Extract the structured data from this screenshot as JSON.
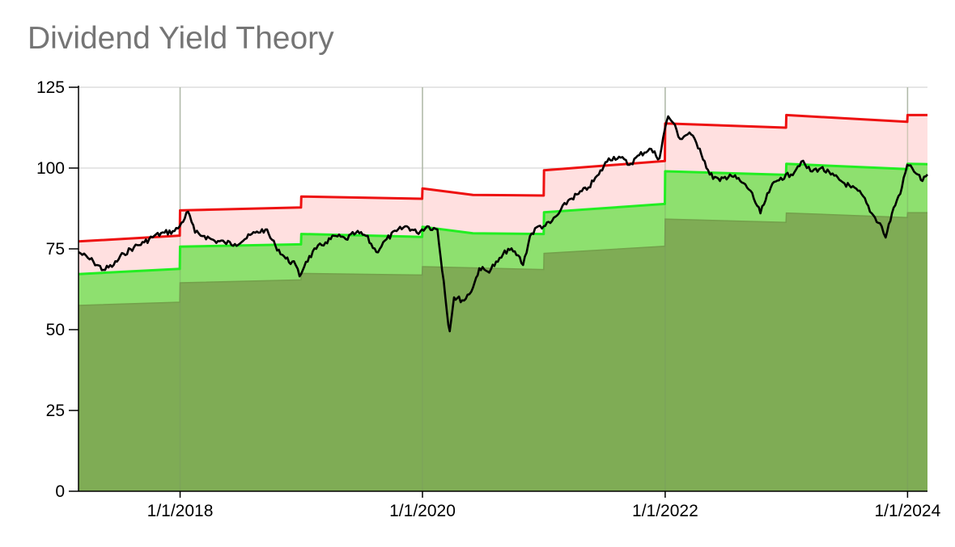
{
  "chart_data": {
    "type": "area",
    "title": "Dividend Yield Theory",
    "xlabel": "",
    "ylabel": "",
    "xlim": [
      "2017-03-01",
      "2024-03-01"
    ],
    "ylim": [
      0,
      125
    ],
    "y_ticks": [
      0,
      25,
      50,
      75,
      100,
      125
    ],
    "y_tick_labels": [
      "0",
      "25",
      "50",
      "75",
      "100",
      "125"
    ],
    "x_ticks": [
      "2018-01-01",
      "2020-01-01",
      "2022-01-01",
      "2024-01-01"
    ],
    "x_tick_labels": [
      "1/1/2018",
      "1/1/2020",
      "1/1/2022",
      "1/1/2024"
    ],
    "grid": true,
    "legend": "none",
    "colors": {
      "undervalued_band": "#7fac55",
      "fair_band": "#8ee06f",
      "overvalued_band": "#ffe0e0",
      "overvalued_line": "#ee1111",
      "fair_line": "#22ee22",
      "price_line": "#000000"
    },
    "series": [
      {
        "key": "undervalued",
        "points": [
          [
            "2017-03-01",
            57.5
          ],
          [
            "2017-12-31",
            58.5
          ],
          [
            "2018-01-01",
            64.5
          ],
          [
            "2018-12-31",
            65.4
          ],
          [
            "2019-01-01",
            67.4
          ],
          [
            "2019-12-31",
            66.9
          ],
          [
            "2020-01-01",
            69.5
          ],
          [
            "2020-12-31",
            68.6
          ],
          [
            "2021-01-01",
            73.6
          ],
          [
            "2021-12-31",
            75.8
          ],
          [
            "2022-01-01",
            84.2
          ],
          [
            "2022-12-31",
            83.2
          ],
          [
            "2023-01-01",
            86.1
          ],
          [
            "2023-12-31",
            84.7
          ],
          [
            "2024-01-01",
            86.2
          ],
          [
            "2024-03-01",
            86.2
          ]
        ]
      },
      {
        "key": "fair",
        "points": [
          [
            "2017-03-01",
            67.2
          ],
          [
            "2017-12-31",
            68.8
          ],
          [
            "2018-01-01",
            75.7
          ],
          [
            "2018-12-31",
            76.4
          ],
          [
            "2019-01-01",
            79.6
          ],
          [
            "2019-12-31",
            78.7
          ],
          [
            "2020-01-01",
            81.8
          ],
          [
            "2020-06-01",
            79.8
          ],
          [
            "2020-12-31",
            79.6
          ],
          [
            "2021-01-01",
            86.3
          ],
          [
            "2021-12-31",
            88.9
          ],
          [
            "2022-01-01",
            99.0
          ],
          [
            "2022-12-31",
            97.9
          ],
          [
            "2023-01-01",
            101.3
          ],
          [
            "2023-12-31",
            99.7
          ],
          [
            "2024-01-01",
            101.3
          ],
          [
            "2024-03-01",
            101.2
          ]
        ]
      },
      {
        "key": "overvalued",
        "points": [
          [
            "2017-03-01",
            77.3
          ],
          [
            "2017-12-31",
            79.1
          ],
          [
            "2018-01-01",
            86.9
          ],
          [
            "2018-12-31",
            87.8
          ],
          [
            "2019-01-01",
            91.2
          ],
          [
            "2019-12-31",
            90.5
          ],
          [
            "2020-01-01",
            93.7
          ],
          [
            "2020-06-01",
            91.7
          ],
          [
            "2020-12-31",
            91.5
          ],
          [
            "2021-01-01",
            99.3
          ],
          [
            "2021-12-31",
            102.2
          ],
          [
            "2022-01-01",
            113.8
          ],
          [
            "2022-12-31",
            112.5
          ],
          [
            "2023-01-01",
            116.4
          ],
          [
            "2023-12-31",
            114.3
          ],
          [
            "2024-01-01",
            116.4
          ],
          [
            "2024-03-01",
            116.4
          ]
        ]
      },
      {
        "key": "price",
        "points": [
          [
            "2017-03-01",
            74.0
          ],
          [
            "2017-04-15",
            71.0
          ],
          [
            "2017-05-15",
            68.5
          ],
          [
            "2017-06-15",
            70.0
          ],
          [
            "2017-07-15",
            73.5
          ],
          [
            "2017-08-15",
            75.5
          ],
          [
            "2017-09-15",
            77.0
          ],
          [
            "2017-10-15",
            79.0
          ],
          [
            "2017-11-15",
            80.0
          ],
          [
            "2017-12-15",
            80.5
          ],
          [
            "2017-12-31",
            82.0
          ],
          [
            "2018-01-25",
            86.5
          ],
          [
            "2018-02-15",
            80.0
          ],
          [
            "2018-03-15",
            79.0
          ],
          [
            "2018-04-15",
            77.5
          ],
          [
            "2018-05-15",
            77.0
          ],
          [
            "2018-06-15",
            76.5
          ],
          [
            "2018-07-15",
            78.0
          ],
          [
            "2018-08-15",
            80.0
          ],
          [
            "2018-09-15",
            81.0
          ],
          [
            "2018-10-15",
            76.0
          ],
          [
            "2018-11-15",
            72.0
          ],
          [
            "2018-12-15",
            70.0
          ],
          [
            "2018-12-27",
            66.5
          ],
          [
            "2019-01-15",
            71.0
          ],
          [
            "2019-02-15",
            75.0
          ],
          [
            "2019-03-15",
            77.0
          ],
          [
            "2019-04-15",
            79.0
          ],
          [
            "2019-05-15",
            78.0
          ],
          [
            "2019-06-15",
            80.0
          ],
          [
            "2019-07-15",
            79.0
          ],
          [
            "2019-08-15",
            74.0
          ],
          [
            "2019-09-15",
            78.0
          ],
          [
            "2019-10-15",
            80.5
          ],
          [
            "2019-11-15",
            82.0
          ],
          [
            "2019-12-15",
            80.0
          ],
          [
            "2020-01-15",
            82.0
          ],
          [
            "2020-02-15",
            81.0
          ],
          [
            "2020-03-05",
            65.0
          ],
          [
            "2020-03-15",
            55.0
          ],
          [
            "2020-03-23",
            49.5
          ],
          [
            "2020-04-05",
            60.0
          ],
          [
            "2020-05-05",
            59.0
          ],
          [
            "2020-06-01",
            63.0
          ],
          [
            "2020-06-20",
            69.0
          ],
          [
            "2020-07-15",
            68.0
          ],
          [
            "2020-08-15",
            71.0
          ],
          [
            "2020-09-15",
            75.0
          ],
          [
            "2020-10-15",
            73.0
          ],
          [
            "2020-10-30",
            70.0
          ],
          [
            "2020-11-20",
            79.0
          ],
          [
            "2020-12-15",
            82.0
          ],
          [
            "2020-12-31",
            82.0
          ],
          [
            "2021-01-20",
            83.0
          ],
          [
            "2021-02-15",
            86.0
          ],
          [
            "2021-03-15",
            90.0
          ],
          [
            "2021-04-15",
            92.0
          ],
          [
            "2021-05-15",
            94.0
          ],
          [
            "2021-06-15",
            98.0
          ],
          [
            "2021-07-15",
            103.0
          ],
          [
            "2021-08-15",
            103.5
          ],
          [
            "2021-09-15",
            101.0
          ],
          [
            "2021-10-15",
            104.0
          ],
          [
            "2021-11-15",
            106.0
          ],
          [
            "2021-12-15",
            103.0
          ],
          [
            "2021-12-31",
            112.0
          ],
          [
            "2022-01-10",
            116.0
          ],
          [
            "2022-01-25",
            114.0
          ],
          [
            "2022-02-15",
            109.0
          ],
          [
            "2022-03-15",
            111.0
          ],
          [
            "2022-04-15",
            106.0
          ],
          [
            "2022-05-15",
            98.0
          ],
          [
            "2022-06-15",
            96.0
          ],
          [
            "2022-07-15",
            98.0
          ],
          [
            "2022-08-15",
            96.0
          ],
          [
            "2022-09-15",
            93.0
          ],
          [
            "2022-10-15",
            86.0
          ],
          [
            "2022-11-15",
            94.0
          ],
          [
            "2022-12-15",
            97.0
          ],
          [
            "2023-01-15",
            98.0
          ],
          [
            "2023-02-15",
            102.0
          ],
          [
            "2023-03-15",
            99.0
          ],
          [
            "2023-04-15",
            100.0
          ],
          [
            "2023-05-15",
            98.0
          ],
          [
            "2023-06-15",
            96.0
          ],
          [
            "2023-07-15",
            94.0
          ],
          [
            "2023-08-15",
            92.0
          ],
          [
            "2023-09-15",
            86.0
          ],
          [
            "2023-10-15",
            82.0
          ],
          [
            "2023-10-27",
            78.5
          ],
          [
            "2023-11-15",
            86.0
          ],
          [
            "2023-12-15",
            94.0
          ],
          [
            "2023-12-31",
            101.0
          ],
          [
            "2024-01-15",
            100.0
          ],
          [
            "2024-02-01",
            98.0
          ],
          [
            "2024-02-15",
            96.0
          ],
          [
            "2024-03-01",
            98.0
          ]
        ]
      }
    ]
  }
}
